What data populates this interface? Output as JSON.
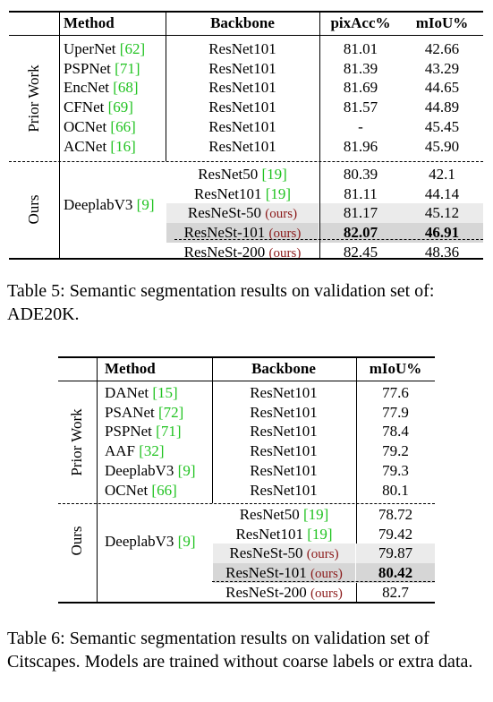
{
  "table5": {
    "headers": {
      "method": "Method",
      "backbone": "Backbone",
      "pixacc": "pixAcc%",
      "miou": "mIoU%"
    },
    "group_prior": "Prior Work",
    "group_ours": "Ours",
    "prior_rows": [
      {
        "method": "UperNet",
        "cite": "[62]",
        "backbone": "ResNet101",
        "pixacc": "81.01",
        "miou": "42.66"
      },
      {
        "method": "PSPNet",
        "cite": "[71]",
        "backbone": "ResNet101",
        "pixacc": "81.39",
        "miou": "43.29"
      },
      {
        "method": "EncNet",
        "cite": "[68]",
        "backbone": "ResNet101",
        "pixacc": "81.69",
        "miou": "44.65"
      },
      {
        "method": "CFNet",
        "cite": "[69]",
        "backbone": "ResNet101",
        "pixacc": "81.57",
        "miou": "44.89"
      },
      {
        "method": "OCNet",
        "cite": "[66]",
        "backbone": "ResNet101",
        "pixacc": "-",
        "miou": "45.45"
      },
      {
        "method": "ACNet",
        "cite": "[16]",
        "backbone": "ResNet101",
        "pixacc": "81.96",
        "miou": "45.90"
      }
    ],
    "ours_method": "DeeplabV3",
    "ours_cite": "[9]",
    "ours_rows": [
      {
        "backbone": "ResNet50",
        "cite": "[19]",
        "ours": "",
        "pixacc": "80.39",
        "miou": "42.1"
      },
      {
        "backbone": "ResNet101",
        "cite": "[19]",
        "ours": "",
        "pixacc": "81.11",
        "miou": "44.14"
      },
      {
        "backbone": "ResNeSt-50",
        "cite": "",
        "ours": "(ours)",
        "pixacc": "81.17",
        "miou": "45.12"
      },
      {
        "backbone": "ResNeSt-101",
        "cite": "",
        "ours": "(ours)",
        "pixacc": "82.07",
        "miou": "46.91"
      },
      {
        "backbone": "ResNeSt-200",
        "cite": "",
        "ours": "(ours)",
        "pixacc": "82.45",
        "miou": "48.36"
      }
    ],
    "caption": "Table 5: Semantic segmentation results on validation set of: ADE20K."
  },
  "table6": {
    "headers": {
      "method": "Method",
      "backbone": "Backbone",
      "miou": "mIoU%"
    },
    "group_prior": "Prior Work",
    "group_ours": "Ours",
    "prior_rows": [
      {
        "method": "DANet",
        "cite": "[15]",
        "backbone": "ResNet101",
        "miou": "77.6"
      },
      {
        "method": "PSANet",
        "cite": "[72]",
        "backbone": "ResNet101",
        "miou": "77.9"
      },
      {
        "method": "PSPNet",
        "cite": "[71]",
        "backbone": "ResNet101",
        "miou": "78.4"
      },
      {
        "method": "AAF",
        "cite": "[32]",
        "backbone": "ResNet101",
        "miou": "79.2"
      },
      {
        "method": "DeeplabV3",
        "cite": "[9]",
        "backbone": "ResNet101",
        "miou": "79.3"
      },
      {
        "method": "OCNet",
        "cite": "[66]",
        "backbone": "ResNet101",
        "miou": "80.1"
      }
    ],
    "ours_method": "DeeplabV3",
    "ours_cite": "[9]",
    "ours_rows": [
      {
        "backbone": "ResNet50",
        "cite": "[19]",
        "ours": "",
        "miou": "78.72"
      },
      {
        "backbone": "ResNet101",
        "cite": "[19]",
        "ours": "",
        "miou": "79.42"
      },
      {
        "backbone": "ResNeSt-50",
        "cite": "",
        "ours": "(ours)",
        "miou": "79.87"
      },
      {
        "backbone": "ResNeSt-101",
        "cite": "",
        "ours": "(ours)",
        "miou": "80.42"
      },
      {
        "backbone": "ResNeSt-200",
        "cite": "",
        "ours": "(ours)",
        "miou": "82.7"
      }
    ],
    "caption": "Table 6: Semantic segmentation results on validation set of Citscapes. Models are trained without coarse labels or extra data."
  }
}
